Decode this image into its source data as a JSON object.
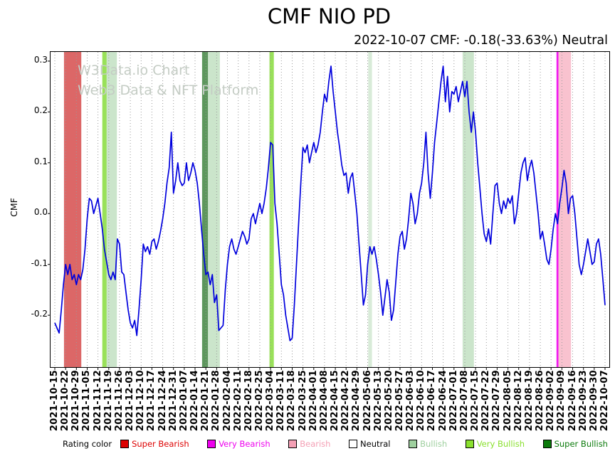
{
  "title": "CMF NIO PD",
  "subtitle": "2022-10-07 CMF: -0.18(-33.63%) Neutral",
  "watermark": {
    "line1": "W3Data.io Chart",
    "line2": "Web3 Data & NFT Platform"
  },
  "legend": {
    "label": "Rating color",
    "items": [
      {
        "label": "Super Bearish",
        "color": "#dd0000"
      },
      {
        "label": "Very Bearish",
        "color": "#ee00ee"
      },
      {
        "label": "Bearish",
        "color": "#f4a0b5"
      },
      {
        "label": "Neutral",
        "color": "#ffffff",
        "text_color": "#000000"
      },
      {
        "label": "Bullish",
        "color": "#9fd09f"
      },
      {
        "label": "Very Bullish",
        "color": "#8ae02e"
      },
      {
        "label": "Super Bullish",
        "color": "#0b7a0b"
      }
    ]
  },
  "chart_data": {
    "type": "line",
    "title": "CMF NIO PD",
    "xlabel": "",
    "ylabel": "CMF",
    "grid": "vertical-dotted",
    "legend_position": "bottom",
    "line_color": "#0000dd",
    "y_ticks": [
      0.3,
      0.2,
      0.1,
      0.0,
      -0.1,
      -0.2
    ],
    "y_axis": {
      "render_min": -0.302,
      "render_max": 0.318
    },
    "categories": [
      "2021-10-15",
      "2021-10-22",
      "2021-10-29",
      "2021-11-05",
      "2021-11-12",
      "2021-11-19",
      "2021-11-26",
      "2021-12-03",
      "2021-12-10",
      "2021-12-17",
      "2021-12-24",
      "2021-12-31",
      "2022-01-07",
      "2022-01-14",
      "2022-01-21",
      "2022-01-28",
      "2022-02-04",
      "2022-02-11",
      "2022-02-18",
      "2022-02-25",
      "2022-03-04",
      "2022-03-11",
      "2022-03-18",
      "2022-03-25",
      "2022-04-01",
      "2022-04-08",
      "2022-04-15",
      "2022-04-22",
      "2022-04-29",
      "2022-05-06",
      "2022-05-13",
      "2022-05-20",
      "2022-05-27",
      "2022-06-03",
      "2022-06-10",
      "2022-06-17",
      "2022-06-24",
      "2022-07-01",
      "2022-07-08",
      "2022-07-15",
      "2022-07-22",
      "2022-07-29",
      "2022-08-05",
      "2022-08-12",
      "2022-08-19",
      "2022-08-26",
      "2022-09-02",
      "2022-09-09",
      "2022-09-16",
      "2022-09-23",
      "2022-09-30",
      "2022-10-07"
    ],
    "series": [
      {
        "name": "CMF",
        "x_start": 0,
        "x_step": 0.2,
        "values": [
          -0.215,
          -0.225,
          -0.235,
          -0.19,
          -0.14,
          -0.1,
          -0.12,
          -0.1,
          -0.13,
          -0.12,
          -0.14,
          -0.12,
          -0.13,
          -0.11,
          -0.07,
          -0.01,
          0.03,
          0.025,
          0.0,
          0.015,
          0.03,
          0.0,
          -0.03,
          -0.07,
          -0.095,
          -0.12,
          -0.13,
          -0.115,
          -0.13,
          -0.05,
          -0.06,
          -0.115,
          -0.12,
          -0.155,
          -0.19,
          -0.215,
          -0.225,
          -0.21,
          -0.24,
          -0.19,
          -0.13,
          -0.06,
          -0.075,
          -0.065,
          -0.08,
          -0.055,
          -0.05,
          -0.07,
          -0.055,
          -0.035,
          -0.01,
          0.02,
          0.06,
          0.09,
          0.16,
          0.04,
          0.065,
          0.1,
          0.065,
          0.055,
          0.06,
          0.1,
          0.065,
          0.08,
          0.1,
          0.085,
          0.06,
          0.02,
          -0.03,
          -0.08,
          -0.12,
          -0.115,
          -0.14,
          -0.12,
          -0.175,
          -0.16,
          -0.23,
          -0.225,
          -0.22,
          -0.15,
          -0.1,
          -0.065,
          -0.05,
          -0.07,
          -0.08,
          -0.065,
          -0.05,
          -0.035,
          -0.045,
          -0.06,
          -0.05,
          -0.01,
          0.0,
          -0.02,
          0.0,
          0.02,
          0.0,
          0.02,
          0.05,
          0.09,
          0.14,
          0.135,
          0.02,
          -0.02,
          -0.08,
          -0.14,
          -0.16,
          -0.2,
          -0.225,
          -0.25,
          -0.245,
          -0.18,
          -0.1,
          -0.02,
          0.06,
          0.13,
          0.12,
          0.135,
          0.1,
          0.12,
          0.14,
          0.12,
          0.135,
          0.16,
          0.2,
          0.235,
          0.22,
          0.26,
          0.29,
          0.24,
          0.2,
          0.16,
          0.13,
          0.095,
          0.075,
          0.08,
          0.04,
          0.07,
          0.08,
          0.04,
          0.0,
          -0.06,
          -0.12,
          -0.18,
          -0.16,
          -0.1,
          -0.065,
          -0.08,
          -0.065,
          -0.09,
          -0.12,
          -0.155,
          -0.2,
          -0.165,
          -0.13,
          -0.155,
          -0.21,
          -0.19,
          -0.135,
          -0.08,
          -0.045,
          -0.035,
          -0.07,
          -0.05,
          -0.01,
          0.04,
          0.02,
          -0.02,
          0.0,
          0.04,
          0.06,
          0.1,
          0.16,
          0.08,
          0.03,
          0.08,
          0.14,
          0.18,
          0.22,
          0.26,
          0.29,
          0.22,
          0.27,
          0.2,
          0.24,
          0.235,
          0.25,
          0.22,
          0.24,
          0.26,
          0.23,
          0.26,
          0.2,
          0.16,
          0.2,
          0.16,
          0.1,
          0.05,
          0.0,
          -0.04,
          -0.055,
          -0.03,
          -0.06,
          0.0,
          0.055,
          0.06,
          0.02,
          0.0,
          0.025,
          0.01,
          0.03,
          0.02,
          0.035,
          -0.02,
          0.0,
          0.04,
          0.08,
          0.1,
          0.11,
          0.065,
          0.09,
          0.105,
          0.08,
          0.04,
          0.0,
          -0.05,
          -0.035,
          -0.06,
          -0.09,
          -0.1,
          -0.07,
          -0.03,
          0.0,
          -0.02,
          0.02,
          0.05,
          0.085,
          0.06,
          0.0,
          0.03,
          0.035,
          0.0,
          -0.05,
          -0.1,
          -0.12,
          -0.1,
          -0.075,
          -0.05,
          -0.075,
          -0.1,
          -0.095,
          -0.06,
          -0.05,
          -0.08,
          -0.13,
          -0.18
        ]
      }
    ],
    "rating_zones": [
      {
        "rating": "Super Bearish",
        "x_start": 0.85,
        "x_end": 2.45,
        "opacity": 0.75
      },
      {
        "rating": "Very Bullish",
        "x_start": 4.4,
        "x_end": 4.8,
        "opacity": 0.8
      },
      {
        "rating": "Bullish",
        "x_start": 4.8,
        "x_end": 5.75,
        "opacity": 0.6
      },
      {
        "rating": "Super Bullish",
        "x_start": 13.65,
        "x_end": 14.2,
        "opacity": 0.75
      },
      {
        "rating": "Bullish",
        "x_start": 14.2,
        "x_end": 15.3,
        "opacity": 0.6
      },
      {
        "rating": "Very Bullish",
        "x_start": 19.9,
        "x_end": 20.3,
        "opacity": 0.8
      },
      {
        "rating": "Bullish",
        "x_start": 29.05,
        "x_end": 29.4,
        "opacity": 0.45
      },
      {
        "rating": "Bullish",
        "x_start": 37.8,
        "x_end": 38.85,
        "opacity": 0.6
      },
      {
        "rating": "Very Bearish",
        "x_start": 46.5,
        "x_end": 46.68,
        "opacity": 0.9
      },
      {
        "rating": "Bearish",
        "x_start": 46.68,
        "x_end": 47.85,
        "opacity": 0.7
      }
    ],
    "rating_colors": {
      "Super Bearish": "#d03434",
      "Very Bearish": "#ee00ee",
      "Bearish": "#f6a8bb",
      "Neutral": "#ffffff",
      "Bullish": "#a9d3a9",
      "Very Bullish": "#7fd92f",
      "Super Bullish": "#267326"
    }
  }
}
